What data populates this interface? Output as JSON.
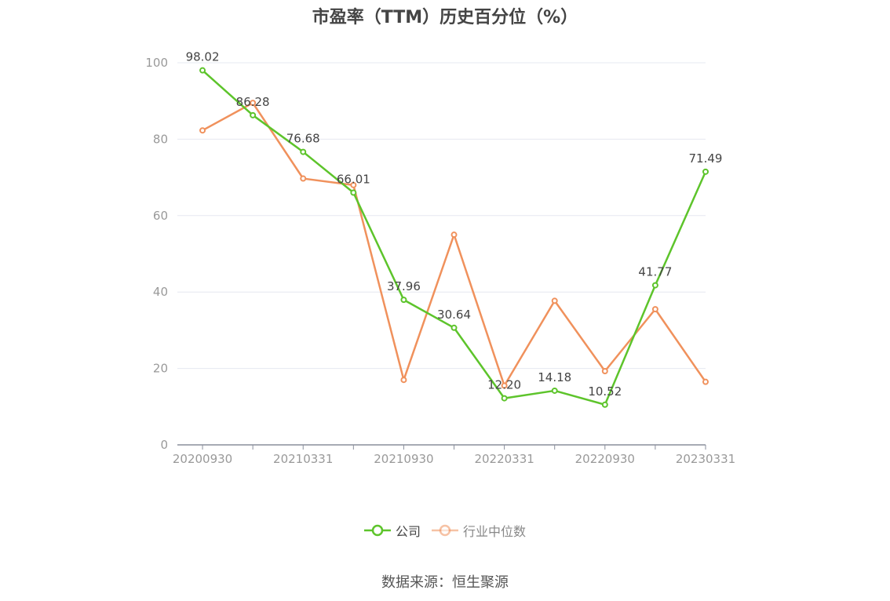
{
  "title": "市盈率（TTM）历史百分位（%）",
  "source": "数据来源：恒生聚源",
  "legend": [
    {
      "label": "公司",
      "color": "#5dc42b"
    },
    {
      "label": "行业中位数",
      "color": "#f0915c"
    }
  ],
  "chart_data": {
    "type": "line",
    "title": "市盈率（TTM）历史百分位（%）",
    "x": [
      "20200930",
      "20201231",
      "20210331",
      "20210630",
      "20210930",
      "20211231",
      "20220331",
      "20220630",
      "20220930",
      "20221231",
      "20230331"
    ],
    "x_tick_labels": [
      "20200930",
      "20210331",
      "20210930",
      "20220331",
      "20220930",
      "20230331"
    ],
    "ylim": [
      0,
      100
    ],
    "y_ticks": [
      0,
      20,
      40,
      60,
      80,
      100
    ],
    "grid": true,
    "legend_position": "bottom",
    "series": [
      {
        "name": "公司",
        "color": "#5dc42b",
        "values": [
          98.02,
          86.28,
          76.68,
          66.01,
          37.96,
          30.64,
          12.2,
          14.18,
          10.52,
          41.77,
          71.49
        ],
        "labels": [
          "98.02",
          "86.28",
          "76.68",
          "66.01",
          "37.96",
          "30.64",
          "12.20",
          "14.18",
          "10.52",
          "41.77",
          "71.49"
        ]
      },
      {
        "name": "行业中位数",
        "color": "#f0915c",
        "values": [
          82.3,
          89.5,
          69.7,
          68.0,
          17.0,
          55.0,
          15.5,
          37.7,
          19.3,
          35.5,
          16.5
        ]
      }
    ]
  }
}
